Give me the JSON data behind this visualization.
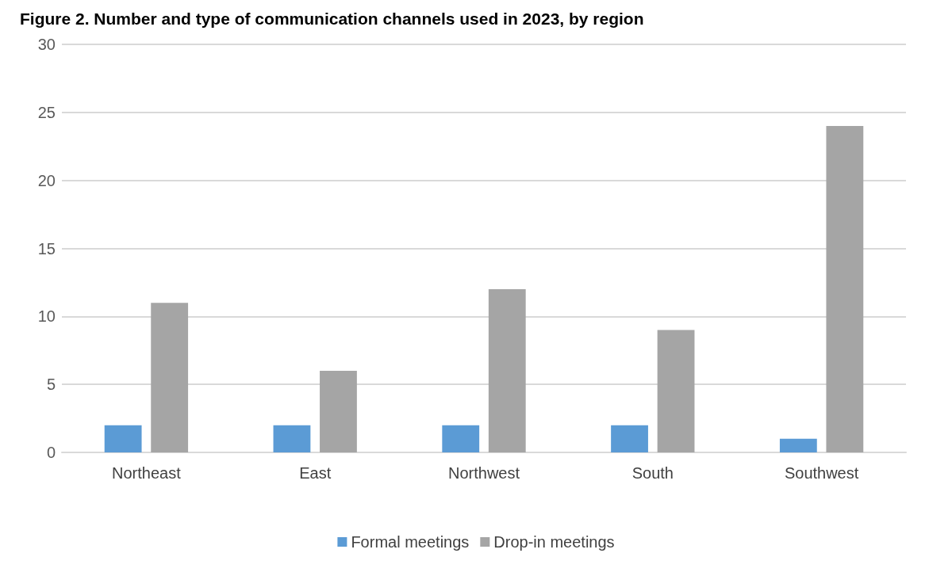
{
  "chart_data": {
    "type": "bar",
    "title": "Figure 2. Number and type of communication channels used in 2023, by region",
    "categories": [
      "Northeast",
      "East",
      "Northwest",
      "South",
      "Southwest"
    ],
    "series": [
      {
        "name": "Formal meetings",
        "color": "#5b9bd5",
        "values": [
          2,
          2,
          2,
          2,
          1
        ]
      },
      {
        "name": "Drop-in meetings",
        "color": "#a5a5a5",
        "values": [
          11,
          6,
          12,
          9,
          24
        ]
      }
    ],
    "ylim": [
      0,
      30
    ],
    "yticks": [
      0,
      5,
      10,
      15,
      20,
      25,
      30
    ],
    "grid": "y",
    "legend": "bottom"
  }
}
